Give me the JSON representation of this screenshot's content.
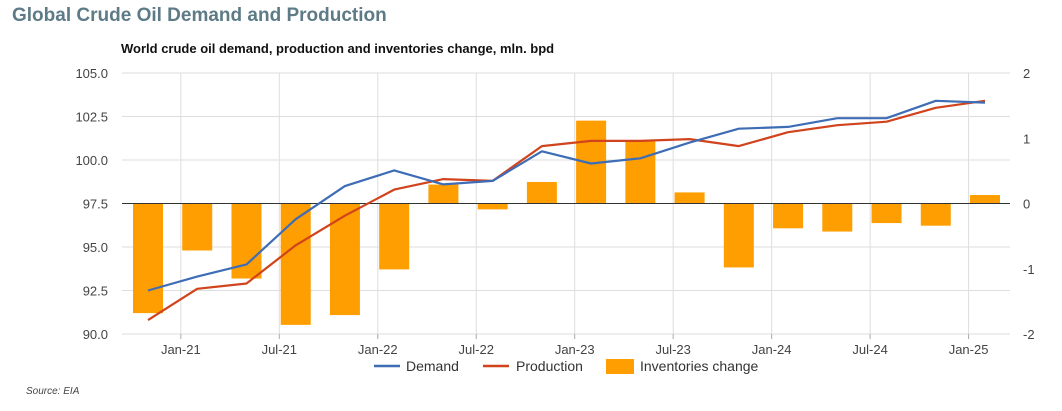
{
  "page": {
    "title": "Global Crude Oil Demand and Production",
    "source": "Source: EIA"
  },
  "colors": {
    "demand": "#3e6db6",
    "production": "#d0431c",
    "inventories": "#ff9e00",
    "grid": "#dedede",
    "zero_line": "#333333"
  },
  "chart_data": {
    "type": "bar+line",
    "title": "World crude oil demand, production and inventories change, mln. bpd",
    "categories": [
      "Oct-20",
      "Jan-21",
      "Apr-21",
      "Jul-21",
      "Oct-21",
      "Jan-22",
      "Apr-22",
      "Jul-22",
      "Oct-22",
      "Jan-23",
      "Apr-23",
      "Jul-23",
      "Oct-23",
      "Jan-24",
      "Apr-24",
      "Jul-24",
      "Oct-24",
      "Jan-25"
    ],
    "x_tick_labels": [
      "Jan-21",
      "Jul-21",
      "Jan-22",
      "Jul-22",
      "Jan-23",
      "Jul-23",
      "Jan-24",
      "Jul-24",
      "Jan-25"
    ],
    "left_axis": {
      "min": 90,
      "max": 105,
      "ticks": [
        "90.0",
        "92.5",
        "95.0",
        "97.5",
        "100.0",
        "102.5",
        "105.0"
      ]
    },
    "right_axis": {
      "min": -2,
      "max": 2,
      "ticks": [
        "-2",
        "-1",
        "0",
        "1",
        "2"
      ]
    },
    "grid": true,
    "legend_position": "bottom",
    "series": [
      {
        "name": "Demand",
        "type": "line",
        "axis": "left",
        "points": [
          [
            "Nov-20",
            92.5
          ],
          [
            "Feb-21",
            93.3
          ],
          [
            "May-21",
            94.0
          ],
          [
            "Aug-21",
            96.6
          ],
          [
            "Nov-21",
            98.5
          ],
          [
            "Feb-22",
            99.4
          ],
          [
            "May-22",
            98.6
          ],
          [
            "Aug-22",
            98.8
          ],
          [
            "Nov-22",
            100.5
          ],
          [
            "Feb-23",
            99.8
          ],
          [
            "May-23",
            100.1
          ],
          [
            "Aug-23",
            101.0
          ],
          [
            "Nov-23",
            101.8
          ],
          [
            "Feb-24",
            101.9
          ],
          [
            "May-24",
            102.4
          ],
          [
            "Aug-24",
            102.4
          ],
          [
            "Nov-24",
            103.4
          ],
          [
            "Feb-25",
            103.3
          ]
        ]
      },
      {
        "name": "Production",
        "type": "line",
        "axis": "left",
        "points": [
          [
            "Nov-20",
            90.8
          ],
          [
            "Feb-21",
            92.6
          ],
          [
            "May-21",
            92.9
          ],
          [
            "Aug-21",
            95.1
          ],
          [
            "Nov-21",
            96.8
          ],
          [
            "Feb-22",
            98.3
          ],
          [
            "May-22",
            98.9
          ],
          [
            "Aug-22",
            98.8
          ],
          [
            "Nov-22",
            100.8
          ],
          [
            "Feb-23",
            101.1
          ],
          [
            "May-23",
            101.1
          ],
          [
            "Aug-23",
            101.2
          ],
          [
            "Nov-23",
            100.8
          ],
          [
            "Feb-24",
            101.6
          ],
          [
            "May-24",
            102.0
          ],
          [
            "Aug-24",
            102.2
          ],
          [
            "Nov-24",
            103.0
          ],
          [
            "Feb-25",
            103.4
          ]
        ]
      },
      {
        "name": "Inventories change",
        "type": "bar",
        "axis": "right",
        "points": [
          [
            "Nov-20",
            -1.68
          ],
          [
            "Feb-21",
            -0.72
          ],
          [
            "May-21",
            -1.15
          ],
          [
            "Aug-21",
            -1.86
          ],
          [
            "Nov-21",
            -1.71
          ],
          [
            "Feb-22",
            -1.01
          ],
          [
            "May-22",
            0.29
          ],
          [
            "Aug-22",
            -0.09
          ],
          [
            "Nov-22",
            0.33
          ],
          [
            "Feb-23",
            1.27
          ],
          [
            "May-23",
            0.95
          ],
          [
            "Aug-23",
            0.17
          ],
          [
            "Nov-23",
            -0.98
          ],
          [
            "Feb-24",
            -0.38
          ],
          [
            "May-24",
            -0.43
          ],
          [
            "Aug-24",
            -0.3
          ],
          [
            "Nov-24",
            -0.34
          ],
          [
            "Feb-25",
            0.13
          ]
        ]
      }
    ]
  }
}
